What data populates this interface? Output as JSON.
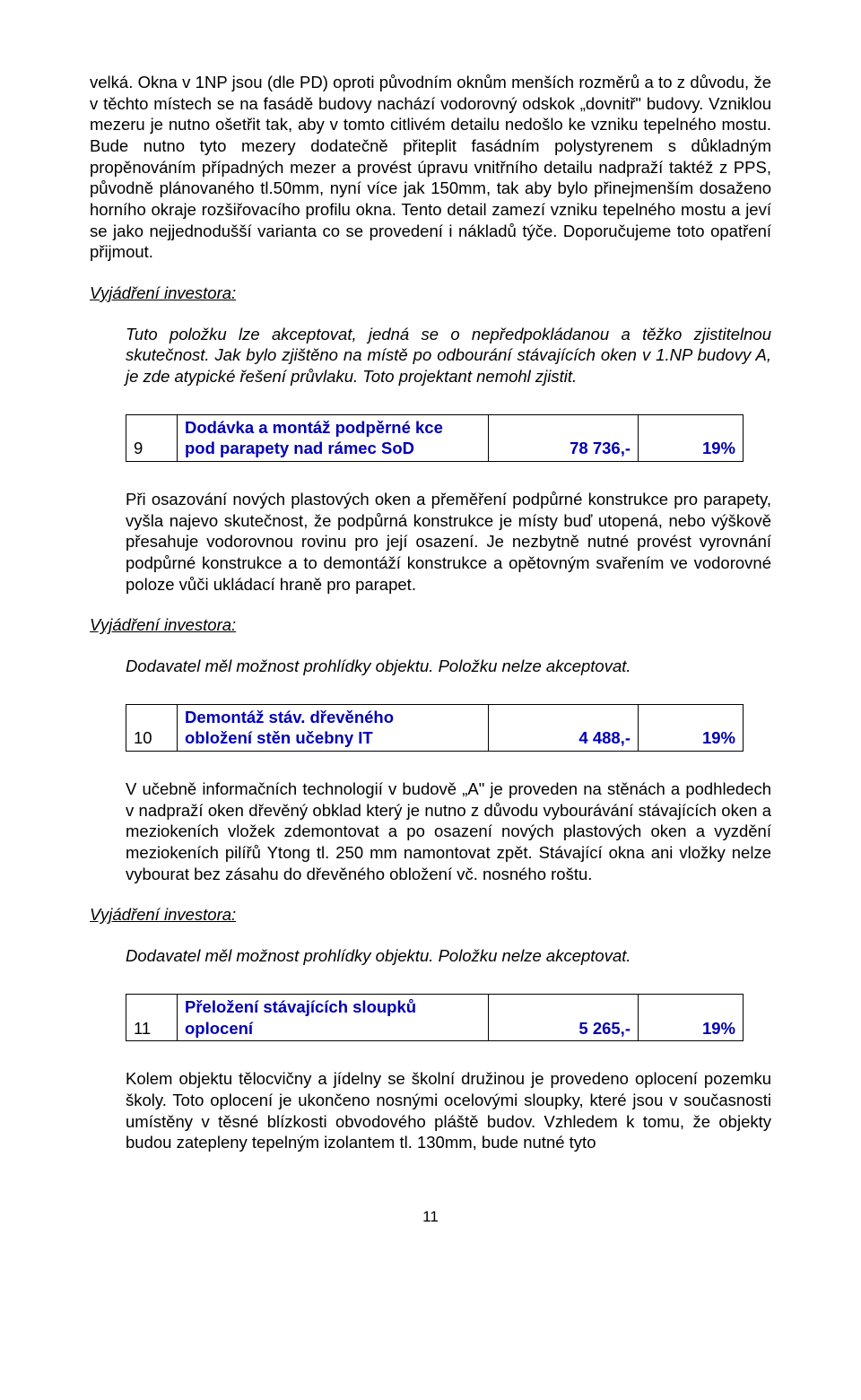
{
  "paragraphs": {
    "p1": "velká. Okna v 1NP jsou (dle PD) oproti původním oknům menších rozměrů a to z důvodu, že v těchto místech se na fasádě budovy nachází vodorovný odskok „dovnitř\" budovy. Vzniklou mezeru je nutno ošetřit tak, aby v tomto citlivém detailu nedošlo ke vzniku tepelného mostu. Bude nutno tyto mezery dodatečně přiteplit fasádním polystyrenem s důkladným propěnováním případných mezer a provést úpravu vnitřního detailu nadpraží taktéž z PPS, původně plánovaného tl.50mm, nyní více jak 150mm, tak aby bylo přinejmenším dosaženo horního okraje rozšiřovacího profilu okna. Tento detail zamezí vzniku tepelného mostu a jeví se jako nejjednodušší varianta co se provedení i nákladů týče. Doporučujeme toto opatření přijmout.",
    "vi_label": "Vyjádření investora:",
    "p2": "Tuto položku lze akceptovat, jedná se o nepředpokládanou a těžko zjistitelnou skutečnost. Jak bylo zjištěno na místě po odbourání stávajících oken v 1.NP budovy A, je zde atypické řešení průvlaku. Toto projektant nemohl zjistit.",
    "p3": "Při osazování nových plastových oken a přeměření podpůrné konstrukce pro parapety, vyšla najevo skutečnost, že podpůrná konstrukce je místy buď utopená, nebo výškově přesahuje vodorovnou rovinu pro její osazení. Je nezbytně nutné provést vyrovnání podpůrné konstrukce a to demontáží konstrukce a opětovným svařením ve vodorovné poloze vůči ukládací hraně pro parapet.",
    "p4": "Dodavatel měl možnost prohlídky objektu. Položku nelze akceptovat.",
    "p5": "V učebně informačních technologií v budově „A\" je proveden na stěnách a podhledech v nadpraží oken dřevěný obklad který je nutno z důvodu vybourávání stávajících oken a meziokeních vložek zdemontovat a po osazení nových plastových oken a vyzdění meziokeních pilířů Ytong tl. 250 mm namontovat zpět. Stávající okna ani vložky nelze vybourat bez zásahu do dřevěného obložení vč. nosného roštu.",
    "p6": "Dodavatel měl možnost prohlídky objektu. Položku nelze akceptovat.",
    "p7": "Kolem objektu tělocvičny a jídelny se školní družinou je provedeno oplocení pozemku školy. Toto oplocení je ukončeno nosnými ocelovými sloupky, které jsou v současnosti umístěny v těsné blízkosti obvodového pláště budov. Vzhledem k tomu, že objekty budou zatepleny tepelným izolantem tl. 130mm, bude nutné tyto"
  },
  "tables": {
    "t9": {
      "num": "9",
      "desc_l1": "Dodávka  a montáž podpěrné kce",
      "desc_l2": "pod parapety nad rámec SoD",
      "price": "78 736,-",
      "pct": "19%"
    },
    "t10": {
      "num": "10",
      "desc_l1": "Demontáž stáv. dřevěného",
      "desc_l2": "obložení stěn učebny IT",
      "price": "4 488,-",
      "pct": "19%"
    },
    "t11": {
      "num": "11",
      "desc_l1": "Přeložení stávajících sloupků",
      "desc_l2": "oplocení",
      "price": "5 265,-",
      "pct": "19%"
    }
  },
  "page_number": "11",
  "colors": {
    "table_text": "#0000b3",
    "table_border": "#000000",
    "body_text": "#000000",
    "background": "#ffffff"
  },
  "typography": {
    "font_family": "Arial",
    "body_fontsize_pt": 14,
    "table_fontsize_pt": 14,
    "table_fontweight": "bold"
  }
}
